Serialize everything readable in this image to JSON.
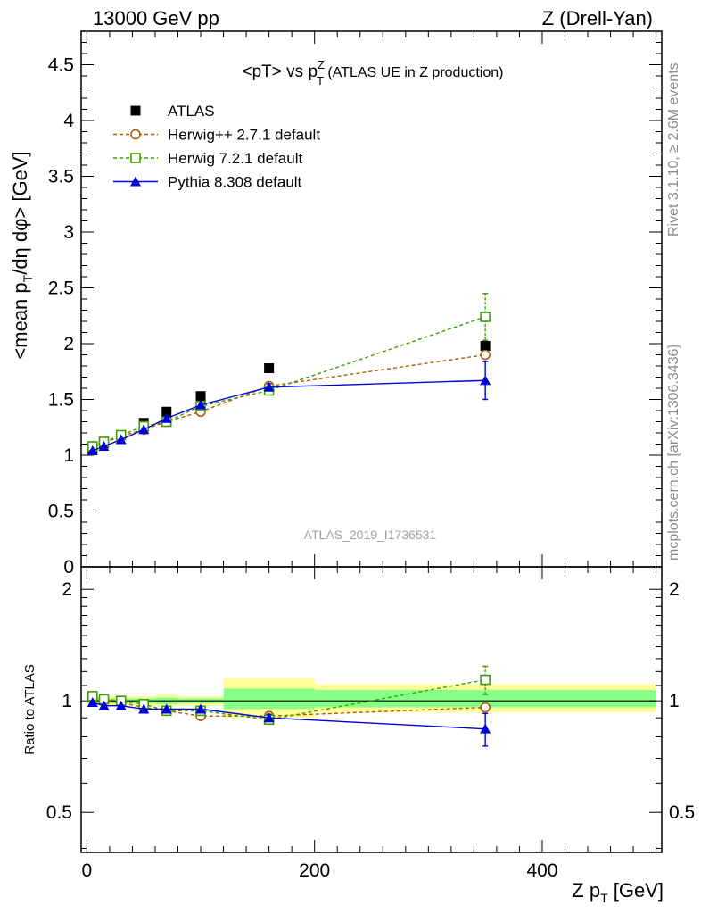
{
  "header": {
    "left": "13000 GeV pp",
    "right": "Z (Drell-Yan)"
  },
  "side_text": {
    "rivet": "Rivet 3.1.10, ≥ 2.6M events",
    "mcplots": "mcplots.cern.ch [arXiv:1306.3436]"
  },
  "colors": {
    "atlas": "#000000",
    "herwigpp": "#b35a00",
    "herwig7": "#3c9e00",
    "pythia": "#0000dd",
    "band_yellow": "#ffff99",
    "band_green": "#88ff88"
  },
  "chart_data": [
    {
      "type": "scatter",
      "panel": "main",
      "title": "<pT> vs p_T^Z (ATLAS UE in Z production)",
      "title_parts": {
        "a": "<pT> vs p",
        "sup": "Z",
        "sub": "T",
        "b": " (ATLAS UE in Z production)"
      },
      "ylabel": "<mean p_T/dη dφ> [GeV]",
      "ylabel_parts": {
        "a": "<mean p",
        "sub": "T",
        "b": "/dη dφ> [GeV]"
      },
      "watermark": "ATLAS_2019_I1736531",
      "xlim": [
        -5,
        505
      ],
      "ylim": [
        0,
        4.8
      ],
      "yticks": [
        0,
        0.5,
        1,
        1.5,
        2,
        2.5,
        3,
        3.5,
        4,
        4.5
      ],
      "ytick_labels": [
        "0",
        "0.5",
        "1",
        "1.5",
        "2",
        "2.5",
        "3",
        "3.5",
        "4",
        "4.5"
      ],
      "legend_position": "top-left",
      "legend": [
        "ATLAS",
        "Herwig++ 2.7.1 default",
        "Herwig 7.2.1 default",
        "Pythia 8.308 default"
      ],
      "x": [
        5,
        15,
        30,
        50,
        70,
        100,
        160,
        350
      ],
      "series": [
        {
          "name": "ATLAS",
          "marker": "filled-square",
          "values": [
            1.05,
            1.11,
            1.18,
            1.29,
            1.39,
            1.53,
            1.78,
            1.98
          ]
        },
        {
          "name": "Herwig++ 2.7.1 default",
          "marker": "open-circle",
          "values": [
            1.08,
            1.11,
            1.17,
            1.23,
            1.3,
            1.39,
            1.62,
            1.9
          ]
        },
        {
          "name": "Herwig 7.2.1 default",
          "marker": "open-square",
          "values": [
            1.08,
            1.12,
            1.18,
            1.26,
            1.3,
            1.44,
            1.58,
            2.24
          ],
          "err": [
            0.01,
            0.01,
            0.01,
            0.01,
            0.01,
            0.02,
            0.03,
            0.21
          ]
        },
        {
          "name": "Pythia 8.308 default",
          "marker": "filled-triangle",
          "values": [
            1.04,
            1.08,
            1.14,
            1.23,
            1.33,
            1.45,
            1.61,
            1.67
          ],
          "err": [
            0.01,
            0.01,
            0.01,
            0.01,
            0.01,
            0.02,
            0.03,
            0.17
          ]
        }
      ]
    },
    {
      "type": "scatter",
      "panel": "ratio",
      "ylabel": "Ratio to ATLAS",
      "xlabel": "Z p_T [GeV]",
      "xlabel_parts": {
        "a": "Z p",
        "sub": "T",
        "b": " [GeV]"
      },
      "xlim": [
        -5,
        505
      ],
      "ylim": [
        0.39,
        2.3
      ],
      "log_y": true,
      "yticks": [
        0.5,
        1,
        2
      ],
      "ytick_labels": [
        "0.5",
        "1",
        "2"
      ],
      "xticks": [
        0,
        200,
        400
      ],
      "xtick_labels": [
        "0",
        "200",
        "400"
      ],
      "x": [
        5,
        15,
        30,
        50,
        70,
        100,
        160,
        350
      ],
      "bands": [
        {
          "x0": 0,
          "x1": 10,
          "yellow": [
            0.97,
            1.03
          ],
          "green": [
            0.985,
            1.015
          ]
        },
        {
          "x0": 10,
          "x1": 20,
          "yellow": [
            0.97,
            1.03
          ],
          "green": [
            0.985,
            1.015
          ]
        },
        {
          "x0": 20,
          "x1": 40,
          "yellow": [
            0.97,
            1.03
          ],
          "green": [
            0.985,
            1.015
          ]
        },
        {
          "x0": 40,
          "x1": 60,
          "yellow": [
            0.97,
            1.03
          ],
          "green": [
            0.985,
            1.015
          ]
        },
        {
          "x0": 60,
          "x1": 80,
          "yellow": [
            0.965,
            1.04
          ],
          "green": [
            0.98,
            1.02
          ]
        },
        {
          "x0": 80,
          "x1": 120,
          "yellow": [
            0.97,
            1.03
          ],
          "green": [
            0.985,
            1.015
          ]
        },
        {
          "x0": 120,
          "x1": 200,
          "yellow": [
            0.9,
            1.15
          ],
          "green": [
            0.95,
            1.08
          ]
        },
        {
          "x0": 200,
          "x1": 500,
          "yellow": [
            0.93,
            1.11
          ],
          "green": [
            0.96,
            1.07
          ]
        }
      ],
      "series": [
        {
          "name": "Herwig++ 2.7.1 default",
          "marker": "open-circle",
          "values": [
            1.02,
            1.0,
            0.99,
            0.96,
            0.94,
            0.91,
            0.91,
            0.96
          ]
        },
        {
          "name": "Herwig 7.2.1 default",
          "marker": "open-square",
          "values": [
            1.03,
            1.01,
            1.0,
            0.98,
            0.94,
            0.94,
            0.89,
            1.14
          ],
          "err": [
            0.01,
            0.01,
            0.01,
            0.01,
            0.01,
            0.01,
            0.02,
            0.1
          ]
        },
        {
          "name": "Pythia 8.308 default",
          "marker": "filled-triangle",
          "values": [
            0.99,
            0.97,
            0.97,
            0.95,
            0.95,
            0.95,
            0.9,
            0.84
          ],
          "err": [
            0.01,
            0.01,
            0.01,
            0.01,
            0.01,
            0.01,
            0.02,
            0.085
          ]
        }
      ]
    }
  ]
}
